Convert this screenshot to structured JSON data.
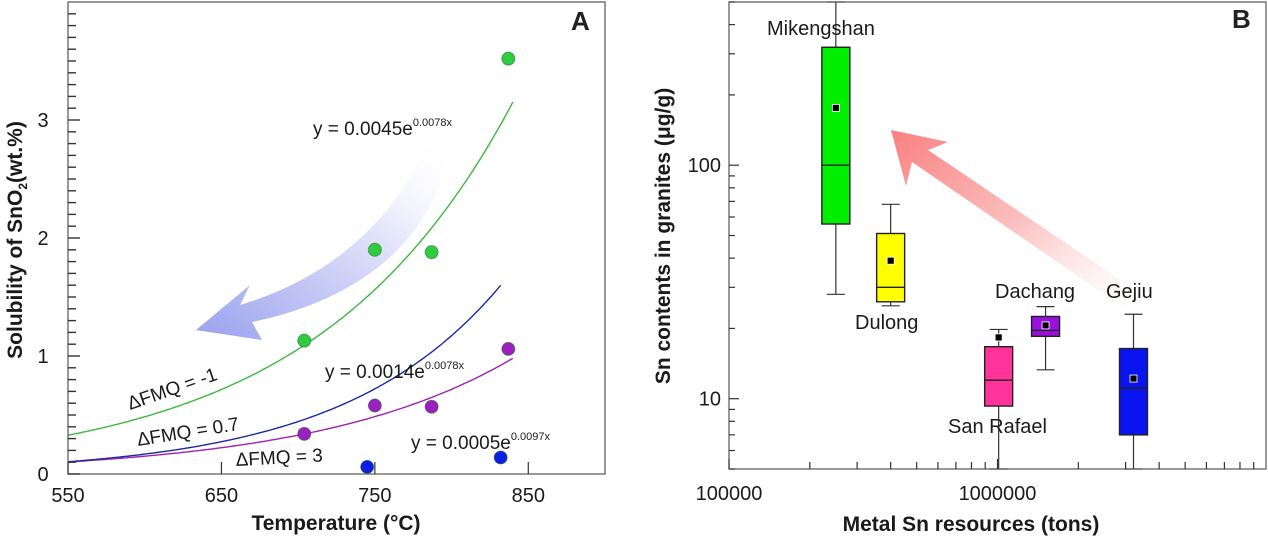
{
  "chart_data": [
    {
      "panel": "A",
      "type": "scatter",
      "title": "",
      "panel_label": "A",
      "xlabel": "Temperature (°C)",
      "ylabel_parts": {
        "pre": "Solubility of SnO",
        "sub": "2",
        "post": "(wt.%)"
      },
      "xlim": [
        550,
        900
      ],
      "ylim": [
        0,
        4
      ],
      "xticks": [
        550,
        650,
        750,
        850
      ],
      "xtick_labels": [
        "550",
        "650",
        "750",
        "850"
      ],
      "yticks": [
        0,
        1,
        2,
        3
      ],
      "ytick_labels": [
        "0",
        "1",
        "2",
        "3"
      ],
      "grid": false,
      "series": [
        {
          "name": "ΔFMQ = -1",
          "color": "#2ecc40",
          "line_color": "#3cb83c",
          "x": [
            704,
            750,
            787,
            837
          ],
          "y": [
            1.13,
            1.9,
            1.88,
            3.52
          ],
          "fit": {
            "a": 0.0045,
            "b": 0.0078,
            "equation": "y = 0.0045e",
            "exponent": "0.0078x",
            "x_range": [
              550,
              840
            ]
          },
          "label": "ΔFMQ = -1"
        },
        {
          "name": "ΔFMQ = 0.7",
          "color": "#9b1fc1",
          "line_color": "#a020b0",
          "x": [
            704,
            750,
            787,
            837
          ],
          "y": [
            0.34,
            0.58,
            0.57,
            1.06
          ],
          "fit": {
            "a": 0.0014,
            "b": 0.0078,
            "equation": "y = 0.0014e",
            "exponent": "0.0078x",
            "x_range": [
              550,
              840
            ]
          },
          "label": "ΔFMQ = 0.7"
        },
        {
          "name": "ΔFMQ = 3",
          "color": "#0a1ee6",
          "line_color": "#1a2aa0",
          "x": [
            745,
            832
          ],
          "y": [
            0.06,
            0.14
          ],
          "fit": {
            "a": 0.0005,
            "b": 0.0097,
            "equation": "y = 0.0005e",
            "exponent": "0.0097x",
            "x_range": [
              550,
              832
            ]
          },
          "label": "ΔFMQ = 3"
        }
      ],
      "annotations": [
        "decreasing-trend arrow (blue, curved, pointing toward lower temperature / lower solubility)"
      ]
    },
    {
      "panel": "B",
      "type": "box",
      "title": "",
      "panel_label": "B",
      "xlabel": "Metal Sn resources (tons)",
      "ylabel": "Sn contents in granites (μg/g)",
      "xscale": "log",
      "yscale": "log",
      "xlim": [
        100000,
        10000000
      ],
      "ylim": [
        5,
        500
      ],
      "xticks": [
        100000,
        1000000
      ],
      "xtick_labels": [
        "100000",
        "1000000"
      ],
      "yticks": [
        10,
        100
      ],
      "ytick_labels": [
        "10",
        "100"
      ],
      "grid": false,
      "boxes": [
        {
          "name": "Mikengshan",
          "x": 250000,
          "color": "#00ee00",
          "whisker_low": 28,
          "q1": 56,
          "median": 100,
          "q3": 320,
          "whisker_high": 500,
          "mean": 176
        },
        {
          "name": "Dulong",
          "x": 400000,
          "color": "#ffff00",
          "whisker_low": 25,
          "q1": 26,
          "median": 30,
          "q3": 51,
          "whisker_high": 68,
          "mean": 39
        },
        {
          "name": "San Rafael",
          "x": 1010000,
          "color": "#ff3399",
          "whisker_low": 5,
          "q1": 9.3,
          "median": 12,
          "q3": 16.7,
          "whisker_high": 19.8,
          "mean": 18.3
        },
        {
          "name": "Dachang",
          "x": 1510000,
          "color": "#9b10e0",
          "whisker_low": 13.3,
          "q1": 18.5,
          "median": 19.6,
          "q3": 22.5,
          "whisker_high": 24.8,
          "mean": 20.6
        },
        {
          "name": "Gejiu",
          "x": 3210000,
          "color": "#0a14f0",
          "whisker_low": 5,
          "q1": 7,
          "median": 11.1,
          "q3": 16.4,
          "whisker_high": 23,
          "mean": 12.2
        }
      ],
      "annotations": [
        "increasing-trend arrow (red, pointing from Gejiu toward Mikengshan)"
      ]
    }
  ]
}
